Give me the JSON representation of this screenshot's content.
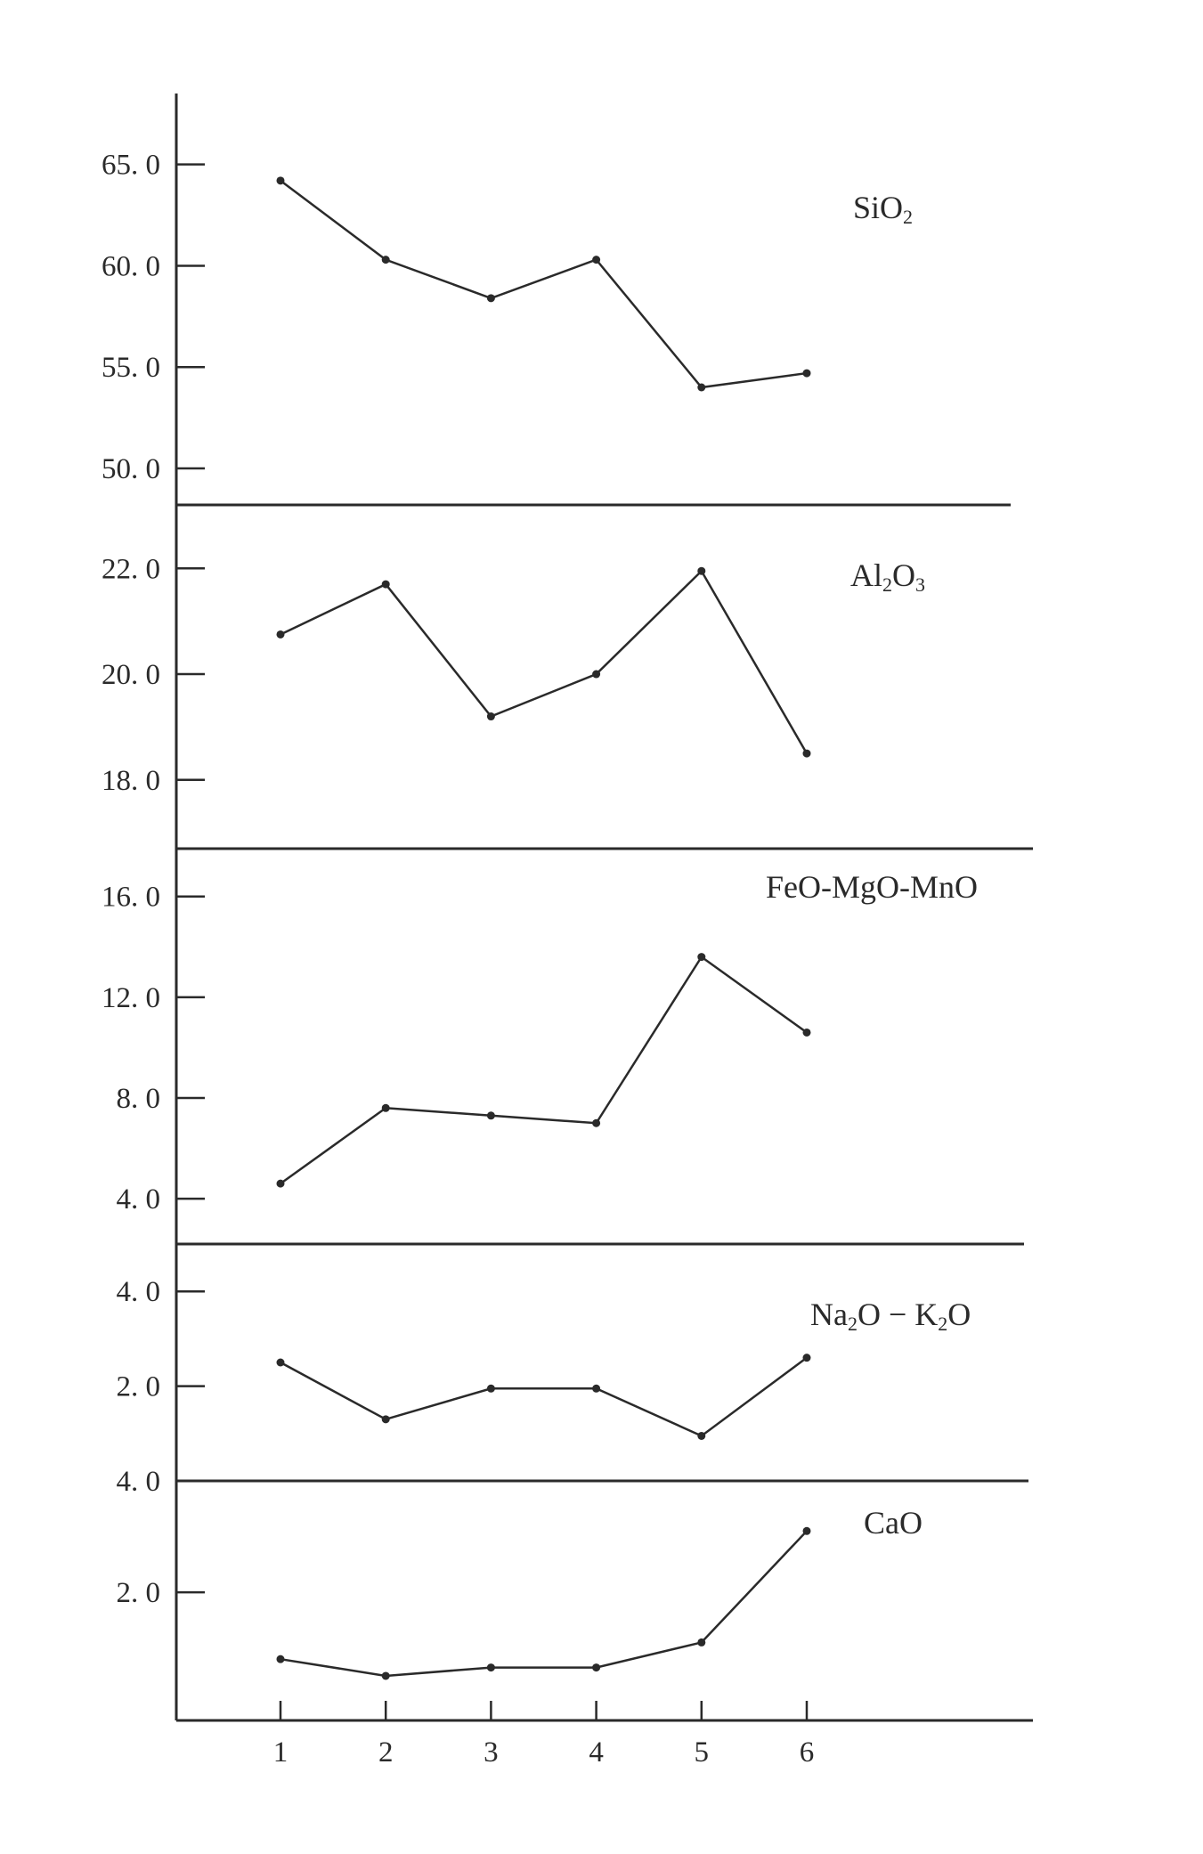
{
  "chart_data": [
    {
      "type": "line",
      "label": "SiO",
      "label_sub": "2",
      "x": [
        1,
        2,
        3,
        4,
        5,
        6
      ],
      "values": [
        64.2,
        60.3,
        58.4,
        60.3,
        54.0,
        54.7
      ],
      "yticks": [
        50.0,
        55.0,
        60.0,
        65.0
      ],
      "ytick_labels": [
        "50. 0",
        "55. 0",
        "60. 0",
        "65. 0"
      ],
      "ylim": [
        48.2,
        68.5
      ]
    },
    {
      "type": "line",
      "label": "Al",
      "label_sub": "2",
      "label_mid": "O",
      "label_sub2": "3",
      "x": [
        1,
        2,
        3,
        4,
        5,
        6
      ],
      "values": [
        20.75,
        21.7,
        19.2,
        20.0,
        21.95,
        18.5
      ],
      "yticks": [
        18.0,
        20.0,
        22.0
      ],
      "ytick_labels": [
        "18. 0",
        "20. 0",
        "22. 0"
      ],
      "ylim": [
        16.7,
        23.2
      ]
    },
    {
      "type": "line",
      "label": "FeO-MgO-MnO",
      "x": [
        1,
        2,
        3,
        4,
        5,
        6
      ],
      "values": [
        4.6,
        7.6,
        7.3,
        7.0,
        13.6,
        10.6
      ],
      "yticks": [
        4.0,
        8.0,
        12.0,
        16.0
      ],
      "ytick_labels": [
        "4. 0",
        "8. 0",
        "12. 0",
        "16. 0"
      ],
      "ylim": [
        2.2,
        17.9
      ]
    },
    {
      "type": "line",
      "label": "Na",
      "label_sub": "2",
      "label_mid": "O − K",
      "label_sub2": "2",
      "label_end": "O",
      "x": [
        1,
        2,
        3,
        4,
        5,
        6
      ],
      "values": [
        2.5,
        1.3,
        1.95,
        1.95,
        0.95,
        2.6
      ],
      "yticks": [
        2.0,
        4.0
      ],
      "ytick_labels": [
        "2. 0",
        "4. 0"
      ],
      "ylim": [
        0.0,
        5.0
      ]
    },
    {
      "type": "line",
      "label": "CaO",
      "x": [
        1,
        2,
        3,
        4,
        5,
        6
      ],
      "values": [
        0.8,
        0.5,
        0.65,
        0.65,
        1.1,
        3.1
      ],
      "yticks": [
        2.0,
        4.0
      ],
      "ytick_labels": [
        "2. 0",
        "4. 0"
      ],
      "ylim": [
        -0.3,
        4.0
      ]
    }
  ],
  "x_axis": {
    "ticks": [
      1,
      2,
      3,
      4,
      5,
      6
    ],
    "tick_labels": [
      "1",
      "2",
      "3",
      "4",
      "5",
      "6"
    ]
  },
  "grid": false
}
